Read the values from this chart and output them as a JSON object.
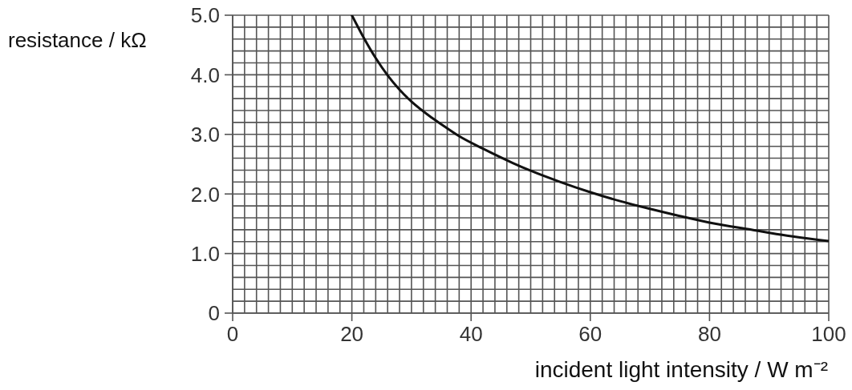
{
  "chart_data": {
    "type": "line",
    "xlabel": "incident light intensity / W m⁻²",
    "ylabel": "resistance / kΩ",
    "x": [
      20,
      22,
      24,
      26,
      28,
      30,
      33,
      35,
      38,
      42,
      47,
      50,
      55,
      60,
      65,
      70,
      75,
      80,
      87,
      93,
      100
    ],
    "values": [
      5.0,
      4.62,
      4.28,
      3.99,
      3.75,
      3.55,
      3.31,
      3.17,
      2.97,
      2.76,
      2.52,
      2.39,
      2.2,
      2.03,
      1.88,
      1.75,
      1.63,
      1.52,
      1.4,
      1.3,
      1.21
    ],
    "color": "#111111",
    "marker": "none",
    "line_style": "solid",
    "grid": true,
    "xlim": [
      0,
      100
    ],
    "xticks": [
      0,
      {
        "value": 2,
        "label": null
      },
      {
        "value": 4,
        "label": null
      },
      {
        "value": 6,
        "label": null
      },
      {
        "value": 8,
        "label": null
      },
      {
        "value": 10,
        "label": null
      },
      {
        "value": 12,
        "label": null
      },
      {
        "value": 14,
        "label": null
      },
      {
        "value": 16,
        "label": null
      },
      {
        "value": 18,
        "label": null
      },
      20,
      {
        "value": 22,
        "label": null
      },
      {
        "value": 24,
        "label": null
      },
      {
        "value": 26,
        "label": null
      },
      {
        "value": 28,
        "label": null
      },
      {
        "value": 30,
        "label": null
      },
      {
        "value": 32,
        "label": null
      },
      {
        "value": 34,
        "label": null
      },
      {
        "value": 36,
        "label": null
      },
      {
        "value": 38,
        "label": null
      },
      40,
      {
        "value": 42,
        "label": null
      },
      {
        "value": 44,
        "label": null
      },
      {
        "value": 46,
        "label": null
      },
      {
        "value": 48,
        "label": null
      },
      {
        "value": 50,
        "label": null
      },
      {
        "value": 52,
        "label": null
      },
      {
        "value": 54,
        "label": null
      },
      {
        "value": 56,
        "label": null
      },
      {
        "value": 58,
        "label": null
      },
      60,
      {
        "value": 62,
        "label": null
      },
      {
        "value": 64,
        "label": null
      },
      {
        "value": 66,
        "label": null
      },
      {
        "value": 68,
        "label": null
      },
      {
        "value": 70,
        "label": null
      },
      {
        "value": 72,
        "label": null
      },
      {
        "value": 74,
        "label": null
      },
      {
        "value": 76,
        "label": null
      },
      {
        "value": 78,
        "label": null
      },
      80,
      {
        "value": 82,
        "label": null
      },
      {
        "value": 84,
        "label": null
      },
      {
        "value": 86,
        "label": null
      },
      {
        "value": 88,
        "label": null
      },
      {
        "value": 90,
        "label": null
      },
      {
        "value": 92,
        "label": null
      },
      {
        "value": 94,
        "label": null
      },
      {
        "value": 96,
        "label": null
      },
      {
        "value": 98,
        "label": null
      },
      100
    ],
    "ylim": [
      0,
      5
    ],
    "yticks": [
      0,
      {
        "value": 0.2,
        "label": null
      },
      {
        "value": 0.4,
        "label": null
      },
      {
        "value": 0.6,
        "label": null
      },
      {
        "value": 0.8,
        "label": null
      },
      {
        "value": 1,
        "label": "1.0"
      },
      {
        "value": 1.2,
        "label": null
      },
      {
        "value": 1.4,
        "label": null
      },
      {
        "value": 1.6,
        "label": null
      },
      {
        "value": 1.8,
        "label": null
      },
      {
        "value": 2,
        "label": "2.0"
      },
      {
        "value": 2.2,
        "label": null
      },
      {
        "value": 2.4,
        "label": null
      },
      {
        "value": 2.6,
        "label": null
      },
      {
        "value": 2.8,
        "label": null
      },
      {
        "value": 3,
        "label": "3.0"
      },
      {
        "value": 3.2,
        "label": null
      },
      {
        "value": 3.4,
        "label": null
      },
      {
        "value": 3.6,
        "label": null
      },
      {
        "value": 3.8,
        "label": null
      },
      {
        "value": 4,
        "label": "4.0"
      },
      {
        "value": 4.2,
        "label": null
      },
      {
        "value": 4.4,
        "label": null
      },
      {
        "value": 4.6,
        "label": null
      },
      {
        "value": 4.8,
        "label": null
      },
      {
        "value": 5,
        "label": "5.0"
      }
    ]
  }
}
